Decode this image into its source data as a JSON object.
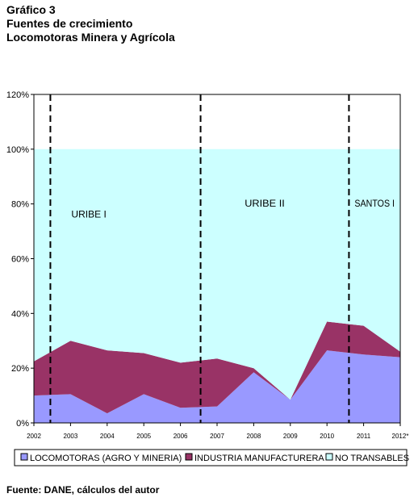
{
  "heading": {
    "line1": "Gráfico 3",
    "line2": "Fuentes de crecimiento",
    "line3": "Locomotoras Minera y Agrícola"
  },
  "source": "Fuente: DANE, cálculos del autor",
  "chart_data": {
    "type": "area",
    "stacked": true,
    "x": [
      "2002",
      "2003",
      "2004",
      "2005",
      "2006",
      "2007",
      "2008",
      "2009",
      "2010",
      "2011",
      "2012*"
    ],
    "series": [
      {
        "name": "LOCOMOTORAS (AGRO Y MINERIA)",
        "color": "#9999ff",
        "values": [
          10,
          10.5,
          3.5,
          10.5,
          5.5,
          6,
          18.5,
          8.5,
          26.5,
          25,
          24
        ]
      },
      {
        "name": "INDUSTRIA MANUFACTURERA",
        "color": "#993366",
        "values": [
          12.5,
          19.5,
          23,
          15,
          16.5,
          17.5,
          1.5,
          0,
          10.5,
          10.5,
          2
        ]
      },
      {
        "name": "NO TRANSABLES",
        "color": "#ccffff",
        "values": [
          77.5,
          70,
          73.5,
          74.5,
          78,
          76.5,
          80,
          91.5,
          63,
          64.5,
          74
        ]
      }
    ],
    "y_ticks": [
      "0%",
      "20%",
      "40%",
      "60%",
      "80%",
      "100%",
      "120%"
    ],
    "ylim": [
      0,
      120
    ],
    "vertical_markers": [
      {
        "position": 2002.45,
        "label": "URIBE I",
        "label_x": 2003.5,
        "label_y": 75
      },
      {
        "position": 2006.55,
        "label": "URIBE II",
        "label_x": 2008.3,
        "label_y": 79
      },
      {
        "position": 2010.6,
        "label": "SANTOS I",
        "label_x": 2011.3,
        "label_y": 79
      }
    ],
    "grid": false,
    "legend_position": "bottom"
  }
}
